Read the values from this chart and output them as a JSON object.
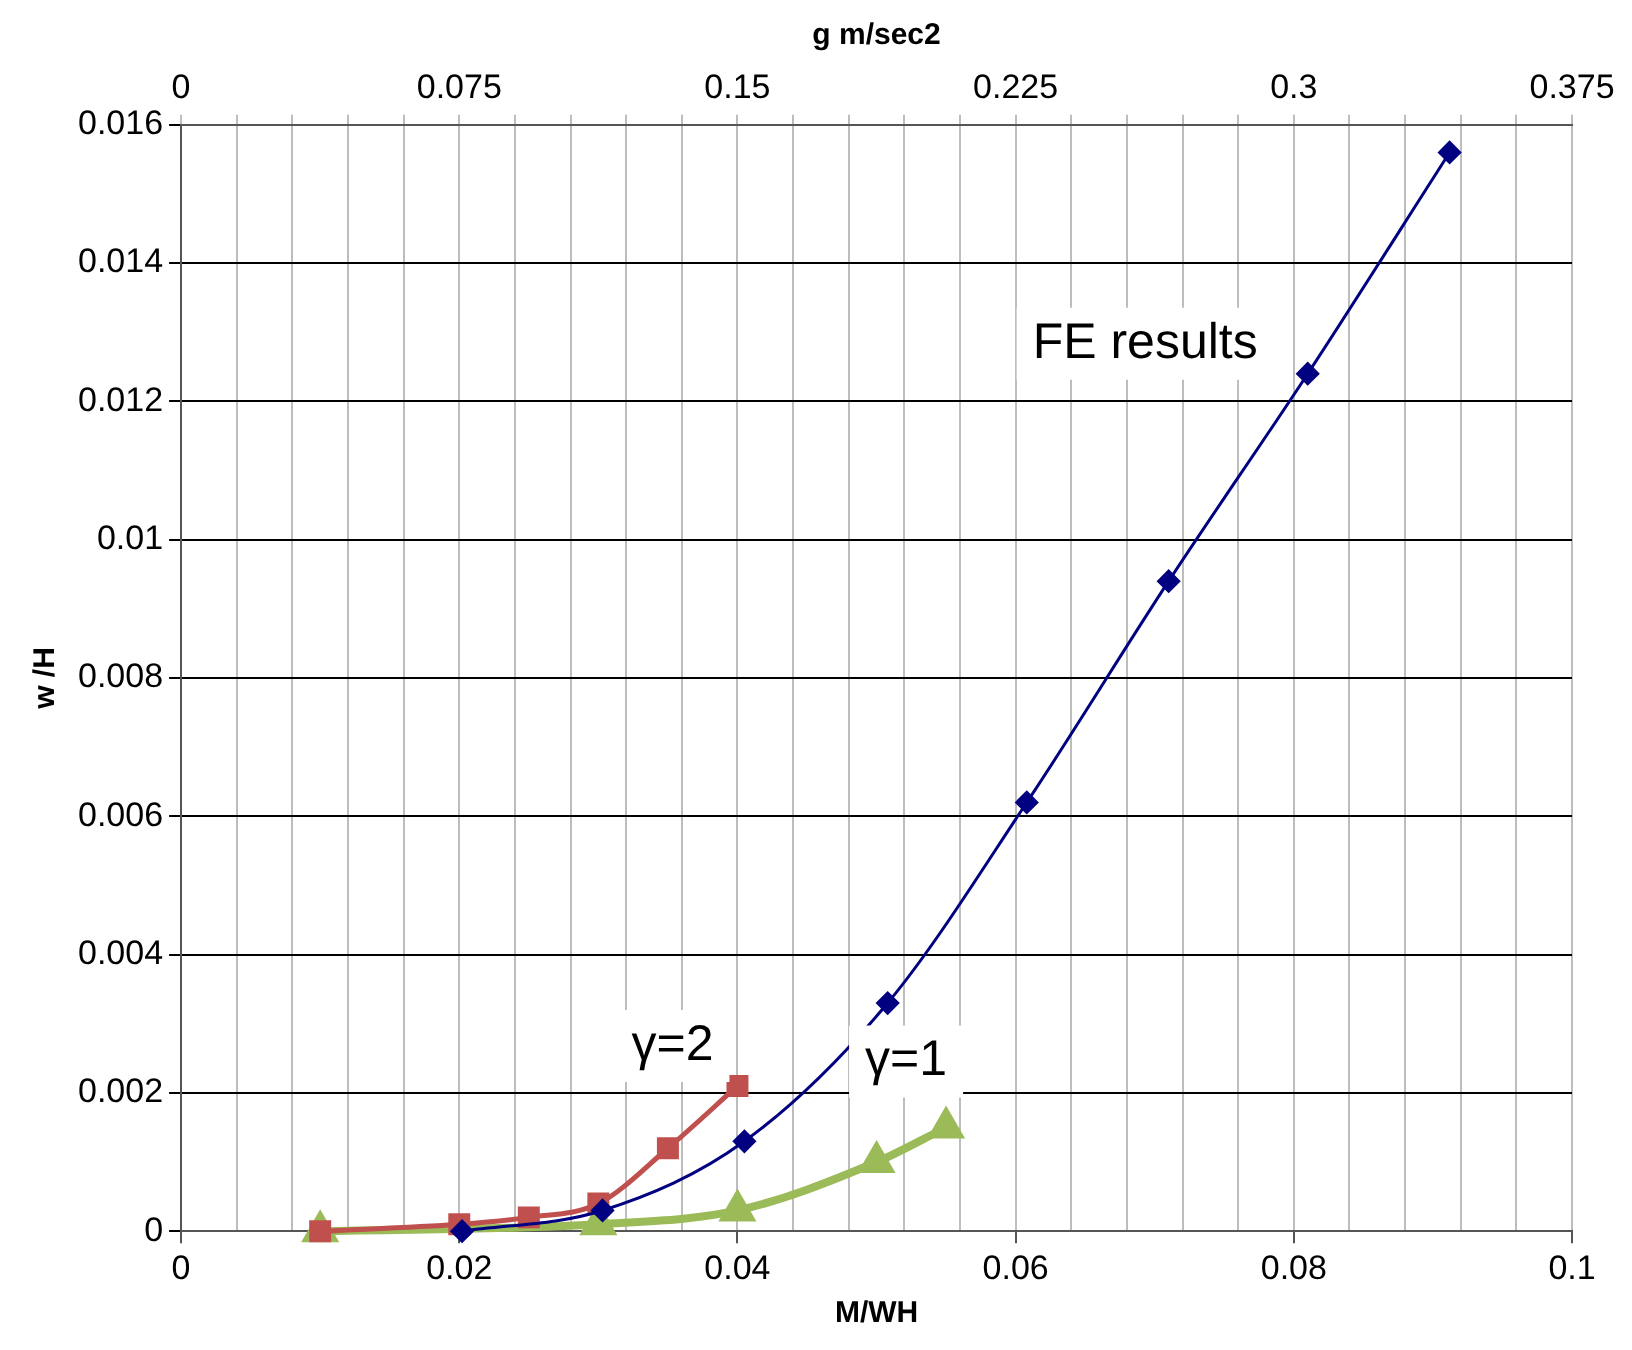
{
  "chart_data": {
    "type": "line",
    "xlabel": "M/WH",
    "ylabel": "w /H",
    "x2label": "g m/sec2",
    "xlim": [
      0,
      0.1
    ],
    "xticks": [
      0,
      0.02,
      0.04,
      0.06,
      0.08,
      0.1
    ],
    "x2lim": [
      0,
      0.375
    ],
    "x2ticks": [
      0,
      {
        "value": 0.015,
        "label": null
      },
      {
        "value": 0.03,
        "label": null
      },
      {
        "value": 0.045,
        "label": null
      },
      {
        "value": 0.06,
        "label": null
      },
      0.075,
      {
        "value": 0.09,
        "label": null
      },
      {
        "value": 0.105,
        "label": null
      },
      {
        "value": 0.12,
        "label": null
      },
      {
        "value": 0.135,
        "label": null
      },
      0.15,
      {
        "value": 0.165,
        "label": null
      },
      {
        "value": 0.18,
        "label": null
      },
      {
        "value": 0.195,
        "label": null
      },
      {
        "value": 0.21,
        "label": null
      },
      0.225,
      {
        "value": 0.24,
        "label": null
      },
      {
        "value": 0.255,
        "label": null
      },
      {
        "value": 0.27,
        "label": null
      },
      {
        "value": 0.285,
        "label": null
      },
      0.3,
      {
        "value": 0.315,
        "label": null
      },
      {
        "value": 0.33,
        "label": null
      },
      {
        "value": 0.345,
        "label": null
      },
      {
        "value": 0.36,
        "label": null
      },
      0.375
    ],
    "ylim": [
      0,
      0.016
    ],
    "yticks": [
      0,
      0.002,
      0.004,
      0.006,
      0.008,
      0.01,
      0.012,
      0.014,
      0.016
    ],
    "grid": true,
    "legend": false,
    "series": [
      {
        "name": "FE results",
        "color": "#000080",
        "marker": "diamond",
        "x": [
          0.0202,
          0.0303,
          0.0405,
          0.0508,
          0.0608,
          0.071,
          0.081,
          0.0912
        ],
        "values": [
          0,
          0.0003,
          0.0013,
          0.0033,
          0.0062,
          0.0094,
          0.0124,
          0.0156
        ]
      },
      {
        "name": "γ=2",
        "color": "#c0504d",
        "marker": "square",
        "x": [
          0.01,
          0.02,
          0.025,
          0.03,
          0.035,
          0.04
        ],
        "values": [
          0,
          0.0001,
          0.0002,
          0.0004,
          0.0012,
          0.0021
        ]
      },
      {
        "name": "γ=1",
        "color": "#9bbb59",
        "marker": "triangle",
        "x": [
          0.01,
          0.03,
          0.04,
          0.05,
          0.055
        ],
        "values": [
          0,
          0.0001,
          0.0003,
          0.001,
          0.0015
        ]
      }
    ]
  }
}
